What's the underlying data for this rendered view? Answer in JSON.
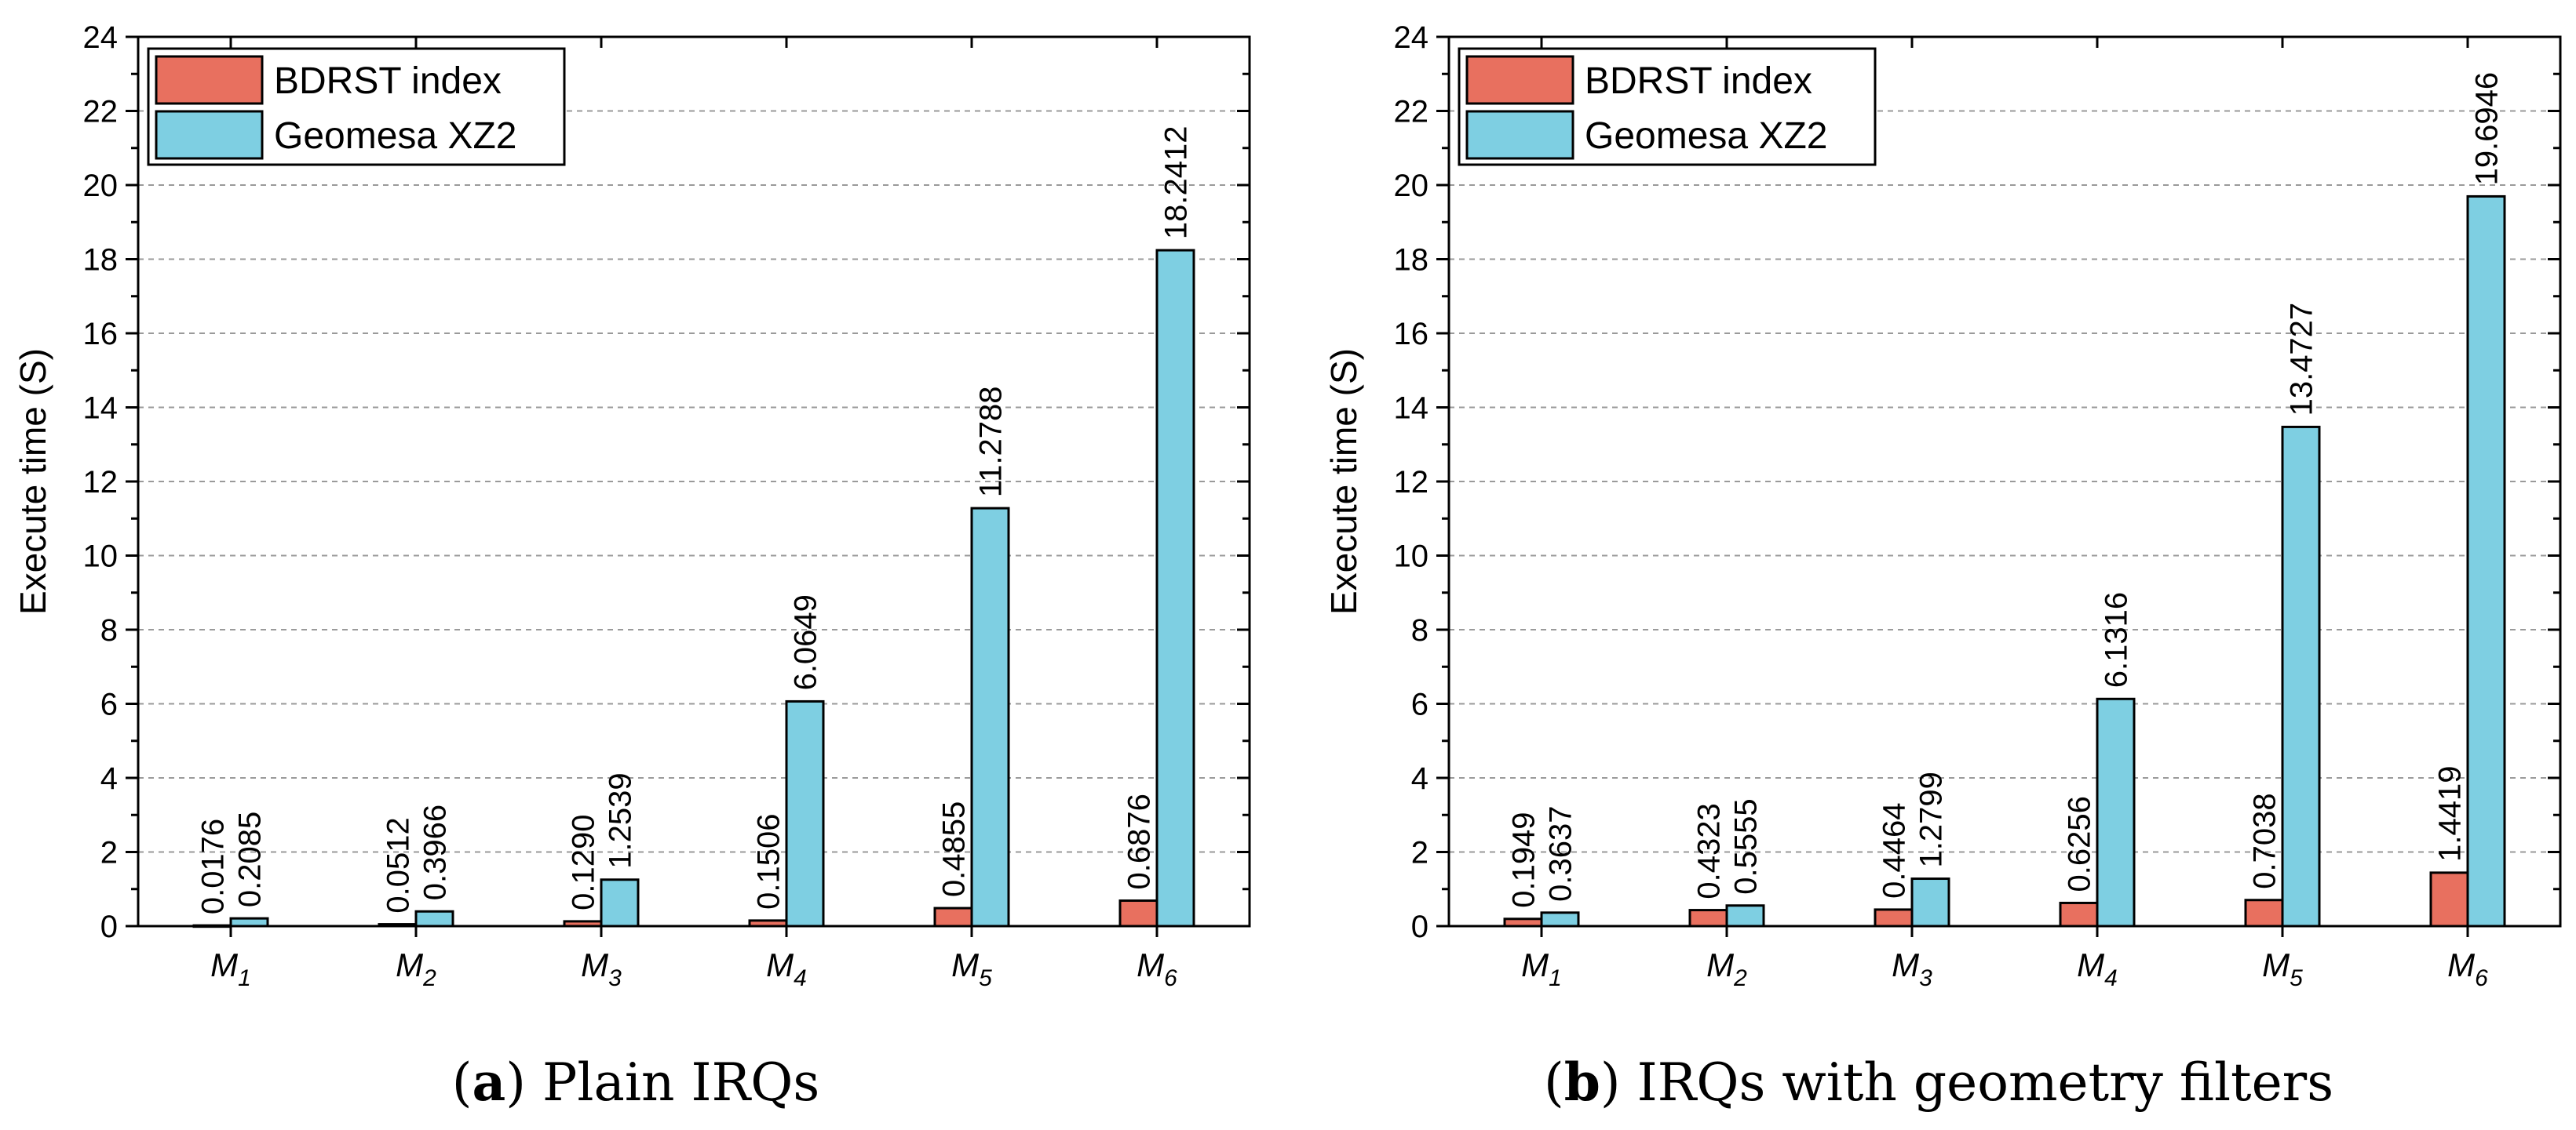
{
  "legend_labels": [
    "BDRST index",
    "Geomesa XZ2"
  ],
  "colors": {
    "bdrst": "#E8705F",
    "geomesa": "#7ECFE2",
    "grid": "#9a9a9a"
  },
  "captions": [
    {
      "bold": "a",
      "text": " Plain IRQs"
    },
    {
      "bold": "b",
      "text": " IRQs with geometry filters"
    }
  ],
  "chart_data": [
    {
      "type": "bar",
      "ylabel": "Execute time (S)",
      "xlabel": "",
      "ylim": [
        0,
        24
      ],
      "yticks": [
        0,
        2,
        4,
        6,
        8,
        10,
        12,
        14,
        16,
        18,
        20,
        22,
        24
      ],
      "grid": true,
      "legend_position": "top-left",
      "categories": [
        {
          "base": "M",
          "sub": "1"
        },
        {
          "base": "M",
          "sub": "2"
        },
        {
          "base": "M",
          "sub": "3"
        },
        {
          "base": "M",
          "sub": "4"
        },
        {
          "base": "M",
          "sub": "5"
        },
        {
          "base": "M",
          "sub": "6"
        }
      ],
      "series": [
        {
          "name": "BDRST index",
          "values": [
            0.0176,
            0.0512,
            0.129,
            0.1506,
            0.4855,
            0.6876
          ],
          "labels": [
            "0.0176",
            "0.0512",
            "0.1290",
            "0.1506",
            "0.4855",
            "0.6876"
          ]
        },
        {
          "name": "Geomesa XZ2",
          "values": [
            0.2085,
            0.3966,
            1.2539,
            6.0649,
            11.2788,
            18.2412
          ],
          "labels": [
            "0.2085",
            "0.3966",
            "1.2539",
            "6.0649",
            "11.2788",
            "18.2412"
          ]
        }
      ]
    },
    {
      "type": "bar",
      "ylabel": "Execute time (S)",
      "xlabel": "",
      "ylim": [
        0,
        24
      ],
      "yticks": [
        0,
        2,
        4,
        6,
        8,
        10,
        12,
        14,
        16,
        18,
        20,
        22,
        24
      ],
      "grid": true,
      "legend_position": "top-left",
      "categories": [
        {
          "base": "M",
          "sub": "1"
        },
        {
          "base": "M",
          "sub": "2"
        },
        {
          "base": "M",
          "sub": "3"
        },
        {
          "base": "M",
          "sub": "4"
        },
        {
          "base": "M",
          "sub": "5"
        },
        {
          "base": "M",
          "sub": "6"
        }
      ],
      "series": [
        {
          "name": "BDRST index",
          "values": [
            0.1949,
            0.4323,
            0.4464,
            0.6256,
            0.7038,
            1.4419
          ],
          "labels": [
            "0.1949",
            "0.4323",
            "0.4464",
            "0.6256",
            "0.7038",
            "1.4419"
          ]
        },
        {
          "name": "Geomesa XZ2",
          "values": [
            0.3637,
            0.5555,
            1.2799,
            6.1316,
            13.4727,
            19.6946
          ],
          "labels": [
            "0.3637",
            "0.5555",
            "1.2799",
            "6.1316",
            "13.4727",
            "19.6946"
          ]
        }
      ]
    }
  ]
}
